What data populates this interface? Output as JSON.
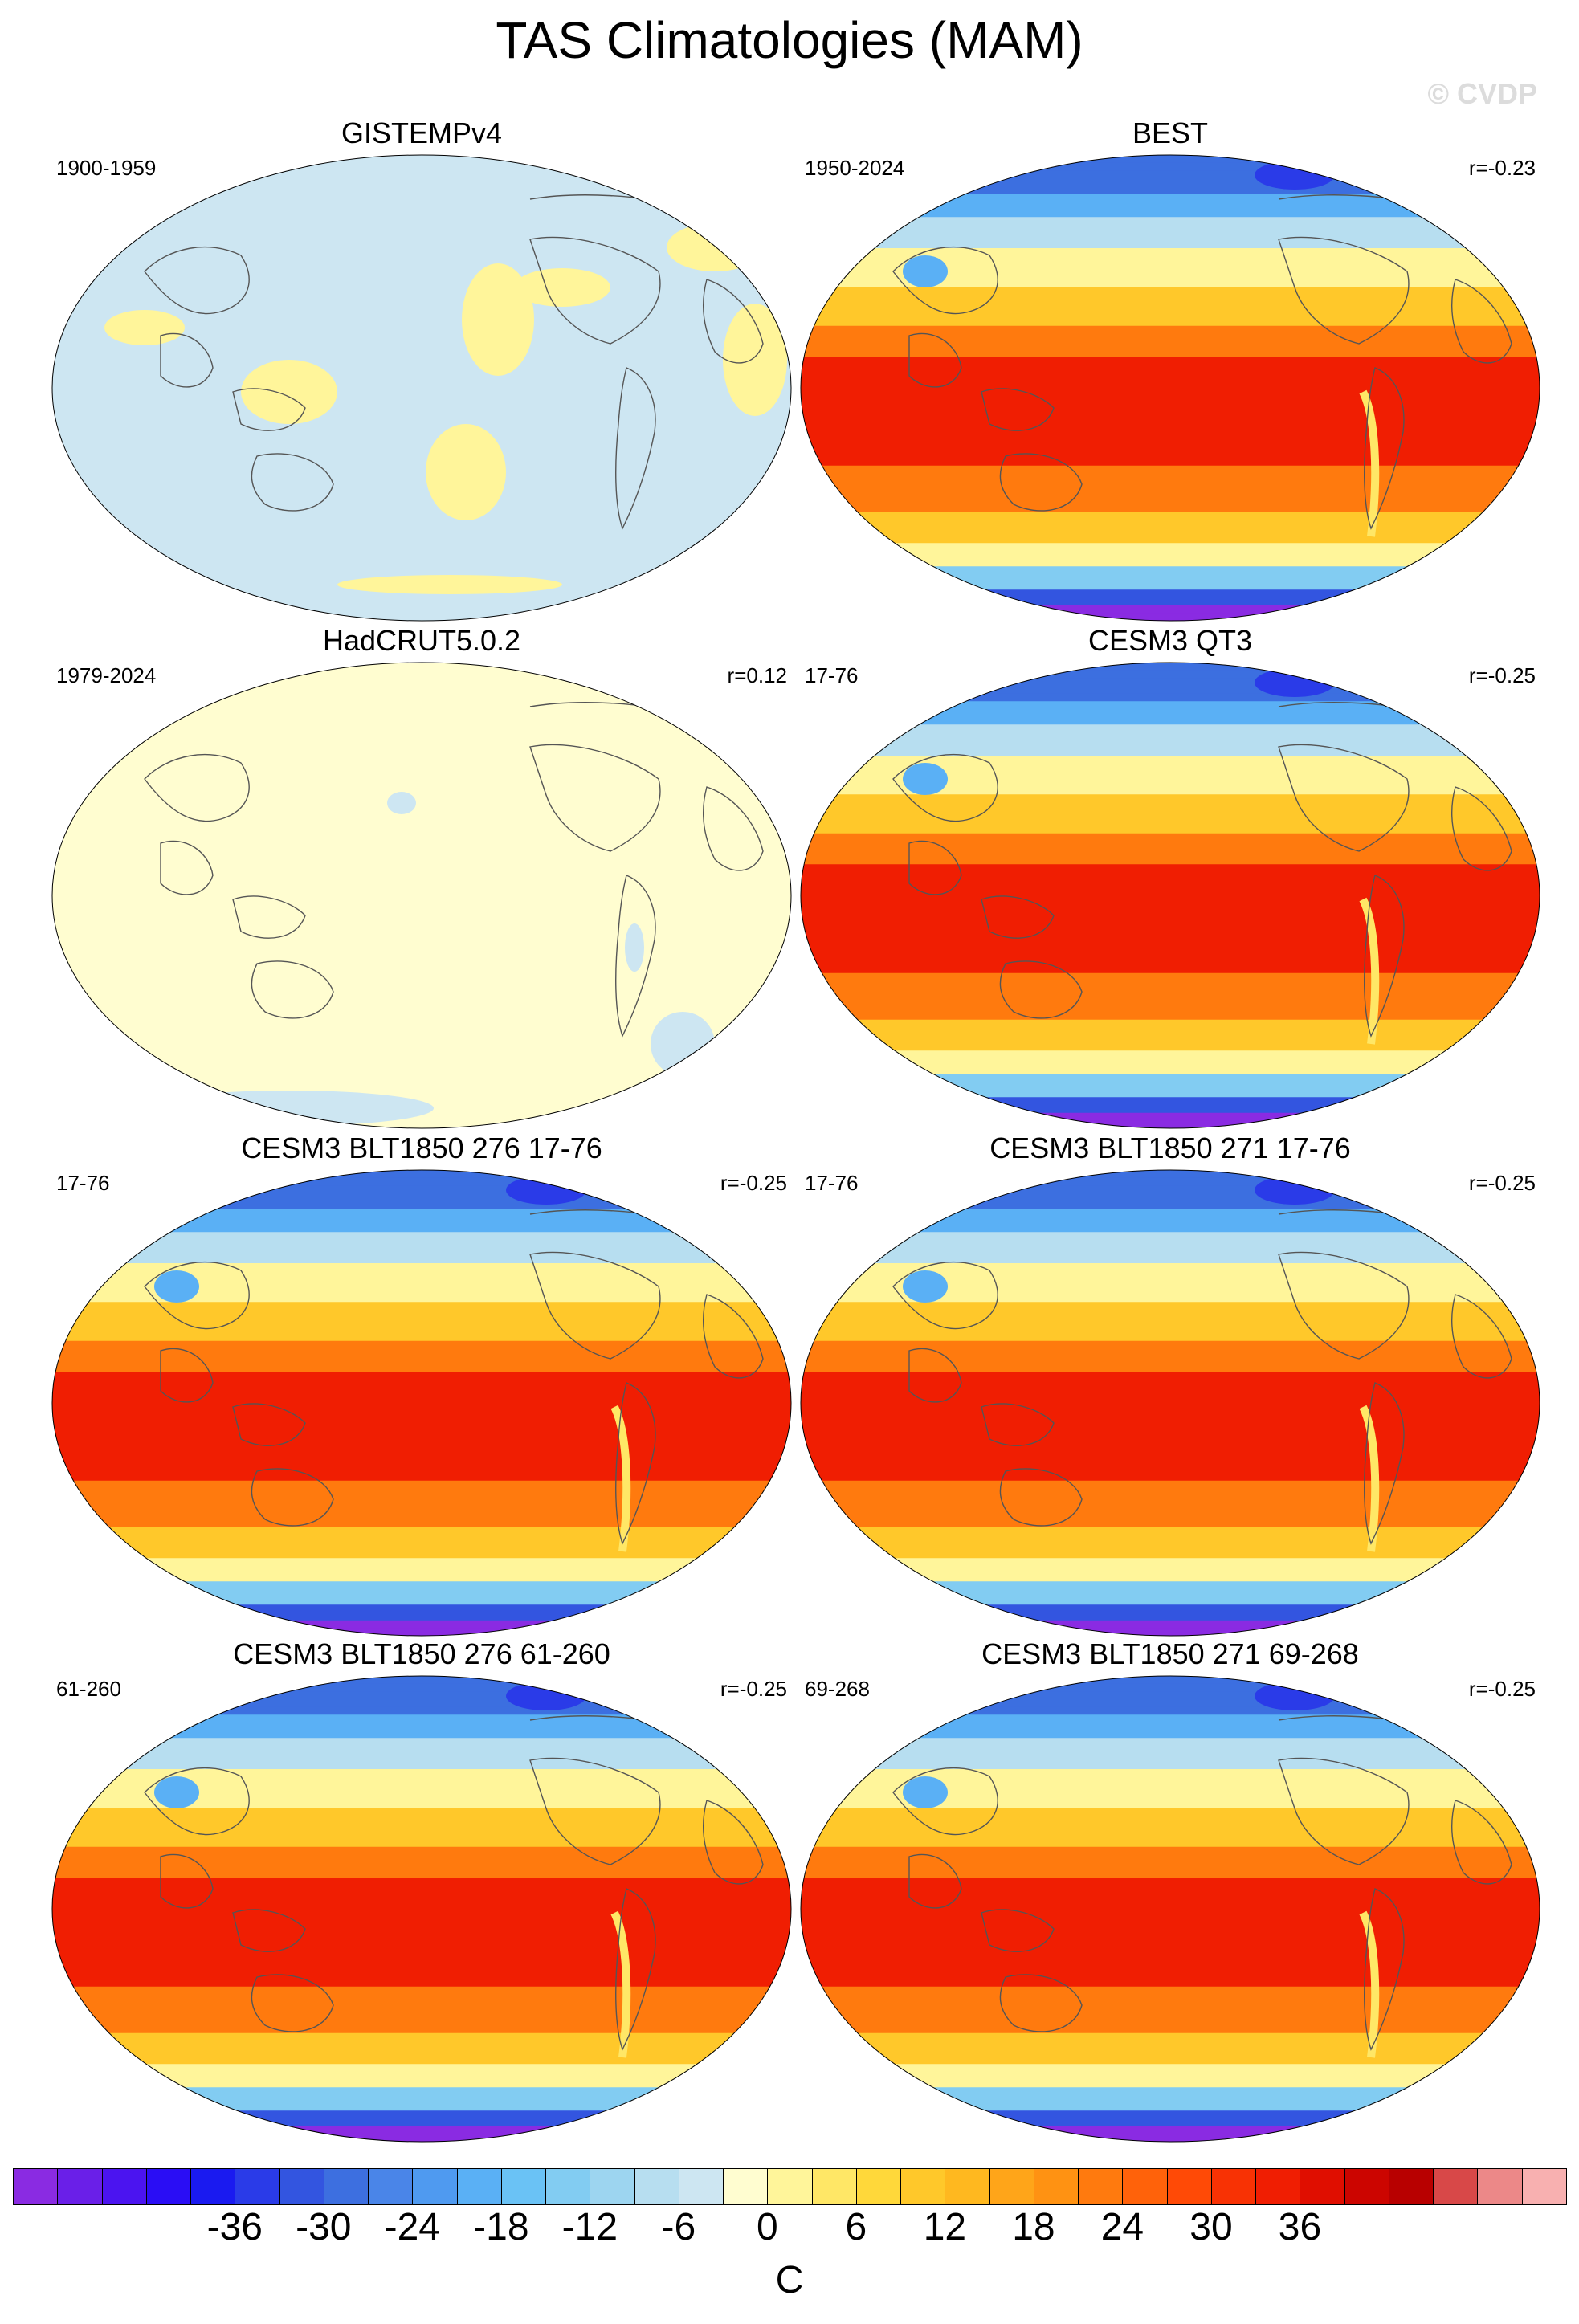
{
  "figure": {
    "title": "TAS Climatologies (MAM)",
    "watermark": "© CVDP"
  },
  "panels": [
    {
      "title": "GISTEMPv4",
      "period": "1900-1959",
      "corr": "",
      "style": "gistemp",
      "frame": [
        60,
        188
      ]
    },
    {
      "title": "BEST",
      "period": "1950-2024",
      "corr": "r=-0.23",
      "style": "warm",
      "frame": [
        992,
        188
      ]
    },
    {
      "title": "HadCRUT5.0.2",
      "period": "1979-2024",
      "corr": "r=0.12",
      "style": "hadcrut",
      "frame": [
        60,
        820
      ]
    },
    {
      "title": "CESM3 QT3",
      "period": "17-76",
      "corr": "r=-0.25",
      "style": "warm",
      "frame": [
        992,
        820
      ]
    },
    {
      "title": "CESM3 BLT1850 276 17-76",
      "period": "17-76",
      "corr": "r=-0.25",
      "style": "warm",
      "frame": [
        60,
        1452
      ]
    },
    {
      "title": "CESM3 BLT1850 271 17-76",
      "period": "17-76",
      "corr": "r=-0.25",
      "style": "warm",
      "frame": [
        992,
        1452
      ]
    },
    {
      "title": "CESM3 BLT1850 276 61-260",
      "period": "61-260",
      "corr": "r=-0.25",
      "style": "warm",
      "frame": [
        60,
        2082
      ]
    },
    {
      "title": "CESM3 BLT1850 271 69-268",
      "period": "69-268",
      "corr": "r=-0.25",
      "style": "warm",
      "frame": [
        992,
        2082
      ]
    }
  ],
  "colorbar": {
    "unit": "C",
    "ticks": [
      "-36",
      "-30",
      "-24",
      "-18",
      "-12",
      "-6",
      "0",
      "6",
      "12",
      "18",
      "24",
      "30",
      "36"
    ],
    "colors": [
      "#8a2be2",
      "#6a1fe8",
      "#4b14f0",
      "#2a0df5",
      "#1a1af0",
      "#2a3be8",
      "#3355e0",
      "#3d6fe0",
      "#4a85e8",
      "#4f9af0",
      "#5ab0f5",
      "#6ac2f5",
      "#82ccf2",
      "#9dd5f0",
      "#b7def0",
      "#cde6f2",
      "#fffdd0",
      "#fff59a",
      "#ffe766",
      "#ffd83a",
      "#ffc82a",
      "#ffb81f",
      "#ffa519",
      "#ff9212",
      "#ff7a0e",
      "#ff620a",
      "#ff4a06",
      "#f83204",
      "#f01e02",
      "#e00e00",
      "#cc0500",
      "#b80000",
      "#d84848",
      "#ec8888",
      "#f8b0b0"
    ]
  }
}
